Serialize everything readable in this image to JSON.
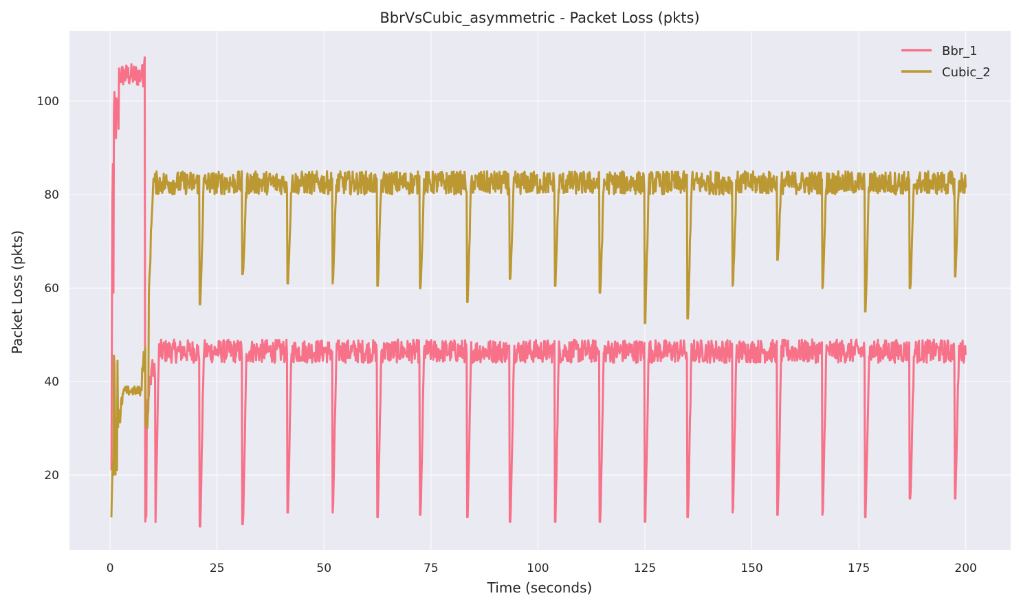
{
  "chart_data": {
    "type": "line",
    "title": "BbrVsCubic_asymmetric - Packet Loss (pkts)",
    "xlabel": "Time (seconds)",
    "ylabel": "Packet Loss (pkts)",
    "xlim": [
      -9.5,
      210.5
    ],
    "ylim": [
      4,
      115
    ],
    "x_ticks": [
      0,
      25,
      50,
      75,
      100,
      125,
      150,
      175,
      200
    ],
    "y_ticks": [
      20,
      40,
      60,
      80,
      100
    ],
    "grid": true,
    "legend_position": "top-right",
    "background_color": "#eaeaf2",
    "grid_color": "#ffffff",
    "series": [
      {
        "name": "Bbr_1",
        "color": "#f77189",
        "phases": [
          {
            "x": [
              0.3,
              33
            ],
            "y": [
              0.8,
              92
            ],
            "y2": [
              1.0,
              20
            ],
            "y3": [
              1.5,
              100
            ],
            "y4": [
              2.5,
              104
            ],
            "y5": [
              5,
              106
            ],
            "y6": [
              7.5,
              107
            ],
            "y7": [
              7.9,
              110
            ],
            "y8": [
              8.2,
              50
            ],
            "y9": [
              8.3,
              10
            ],
            "y10": [
              9,
              30
            ],
            "y11": [
              10,
              44
            ],
            "y12": [
              10.5,
              9
            ],
            "y13": [
              11,
              46
            ]
          }
        ],
        "start_x": 0.3,
        "end_x": 200,
        "steady_level": 46.5,
        "steady_jitter": 2.5,
        "drop_times": [
          10.5,
          21,
          31,
          41.5,
          52,
          62.5,
          72.5,
          83.5,
          93.5,
          104,
          114.5,
          125,
          135,
          145.5,
          156,
          166.5,
          176.5,
          187,
          197.5
        ],
        "drop_minimums": [
          9,
          9,
          9.5,
          12,
          12,
          11,
          11.5,
          11,
          10,
          10,
          10,
          10,
          11,
          12,
          11.5,
          11.5,
          11,
          15,
          15
        ]
      },
      {
        "name": "Cubic_2",
        "color": "#bb9832",
        "start_x": 0.3,
        "end_x": 200,
        "steady_level": 82.5,
        "steady_jitter": 2.5,
        "drop_times": [
          21,
          31,
          41.5,
          52,
          62.5,
          72.5,
          83.5,
          93.5,
          104,
          114.5,
          125,
          135,
          145.5,
          156,
          166.5,
          176.5,
          187,
          197.5
        ],
        "drop_minimums": [
          56.5,
          63,
          61,
          61,
          60.5,
          60,
          57,
          62,
          60.5,
          59,
          52.5,
          53.5,
          60.5,
          66,
          60,
          55,
          60,
          62.5
        ]
      }
    ]
  }
}
